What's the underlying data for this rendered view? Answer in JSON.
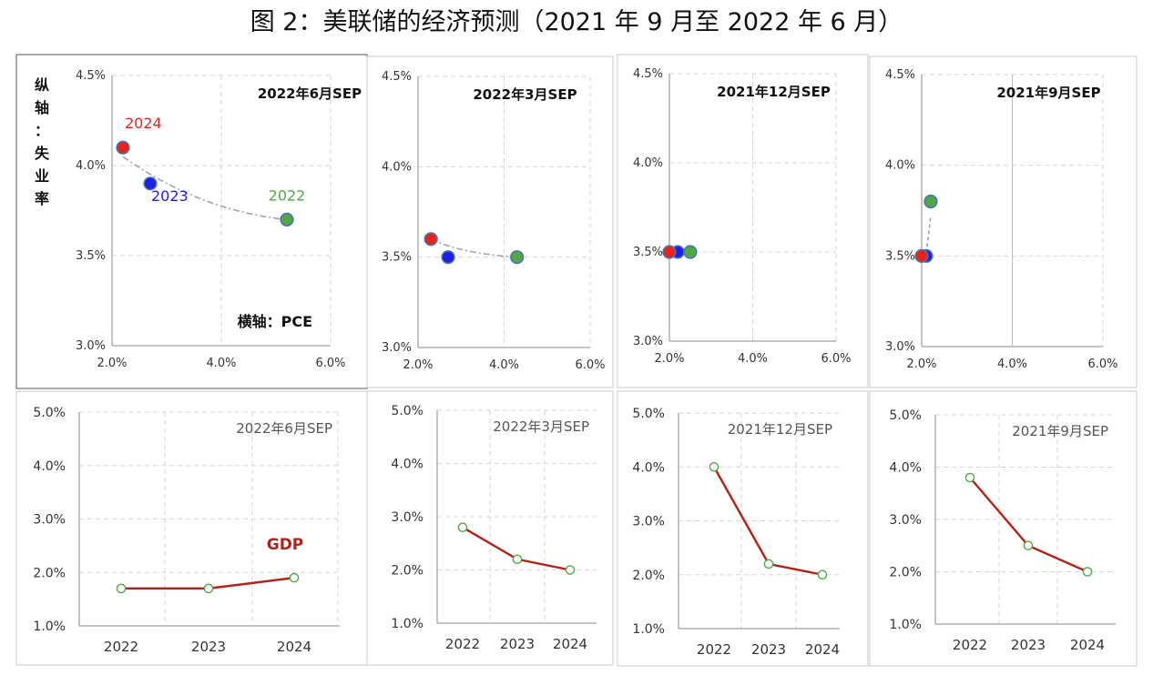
{
  "figure_title": "图 2：美联储的经济预测（2021 年 9 月至 2022 年 6 月）",
  "colors": {
    "y2024": "#e8231f",
    "y2023": "#1d1ee6",
    "y2022": "#52a64a",
    "gdp_line": "#b0231a",
    "trend": "#a3a3a3",
    "grid": "#d6d6d6",
    "axis": "#8a8a8a",
    "tick_text": "#333333"
  },
  "chart_data": [
    {
      "type": "scatter",
      "title": "2022年6月SEP",
      "xlabel": "横轴：PCE",
      "ylabel": "纵轴：失业率",
      "xlim": [
        2.0,
        6.0
      ],
      "ylim": [
        3.0,
        4.5
      ],
      "xticks": [
        "2.0%",
        "4.0%",
        "6.0%"
      ],
      "yticks": [
        "3.0%",
        "3.5%",
        "4.0%",
        "4.5%"
      ],
      "points": [
        {
          "label": "2024",
          "x": 2.2,
          "y": 4.1
        },
        {
          "label": "2023",
          "x": 2.7,
          "y": 3.9
        },
        {
          "label": "2022",
          "x": 5.2,
          "y": 3.7
        }
      ]
    },
    {
      "type": "scatter",
      "title": "2022年3月SEP",
      "xlim": [
        2.0,
        6.0
      ],
      "ylim": [
        3.0,
        4.5
      ],
      "xticks": [
        "2.0%",
        "4.0%",
        "6.0%"
      ],
      "yticks": [
        "3.0%",
        "3.5%",
        "4.0%",
        "4.5%"
      ],
      "points": [
        {
          "label": "2024",
          "x": 2.3,
          "y": 3.6
        },
        {
          "label": "2023",
          "x": 2.7,
          "y": 3.5
        },
        {
          "label": "2022",
          "x": 4.3,
          "y": 3.5
        }
      ]
    },
    {
      "type": "scatter",
      "title": "2021年12月SEP",
      "xlim": [
        2.0,
        6.0
      ],
      "ylim": [
        3.0,
        4.5
      ],
      "xticks": [
        "2.0%",
        "4.0%",
        "6.0%"
      ],
      "yticks": [
        "3.0%",
        "3.5%",
        "4.0%",
        "4.5%"
      ],
      "points": [
        {
          "label": "2024",
          "x": 2.0,
          "y": 3.5
        },
        {
          "label": "2023",
          "x": 2.2,
          "y": 3.5
        },
        {
          "label": "2022",
          "x": 2.5,
          "y": 3.5
        }
      ]
    },
    {
      "type": "scatter",
      "title": "2021年9月SEP",
      "xlim": [
        2.0,
        6.0
      ],
      "ylim": [
        3.0,
        4.5
      ],
      "xticks": [
        "2.0%",
        "4.0%",
        "6.0%"
      ],
      "yticks": [
        "3.0%",
        "3.5%",
        "4.0%",
        "4.5%"
      ],
      "points": [
        {
          "label": "2024",
          "x": 2.0,
          "y": 3.5
        },
        {
          "label": "2023",
          "x": 2.1,
          "y": 3.5
        },
        {
          "label": "2022",
          "x": 2.2,
          "y": 3.8
        }
      ]
    },
    {
      "type": "line",
      "title": "2022年6月SEP",
      "series_label": "GDP",
      "categories": [
        "2022",
        "2023",
        "2024"
      ],
      "values": [
        1.7,
        1.7,
        1.9
      ],
      "ylim": [
        1.0,
        5.0
      ],
      "yticks": [
        "1.0%",
        "2.0%",
        "3.0%",
        "4.0%",
        "5.0%"
      ]
    },
    {
      "type": "line",
      "title": "2022年3月SEP",
      "categories": [
        "2022",
        "2023",
        "2024"
      ],
      "values": [
        2.8,
        2.2,
        2.0
      ],
      "ylim": [
        1.0,
        5.0
      ],
      "yticks": [
        "1.0%",
        "2.0%",
        "3.0%",
        "4.0%",
        "5.0%"
      ]
    },
    {
      "type": "line",
      "title": "2021年12月SEP",
      "categories": [
        "2022",
        "2023",
        "2024"
      ],
      "values": [
        4.0,
        2.2,
        2.0
      ],
      "ylim": [
        1.0,
        5.0
      ],
      "yticks": [
        "1.0%",
        "2.0%",
        "3.0%",
        "4.0%",
        "5.0%"
      ]
    },
    {
      "type": "line",
      "title": "2021年9月SEP",
      "categories": [
        "2022",
        "2023",
        "2024"
      ],
      "values": [
        3.8,
        2.5,
        2.0
      ],
      "ylim": [
        1.0,
        5.0
      ],
      "yticks": [
        "1.0%",
        "2.0%",
        "3.0%",
        "4.0%",
        "5.0%"
      ]
    }
  ]
}
